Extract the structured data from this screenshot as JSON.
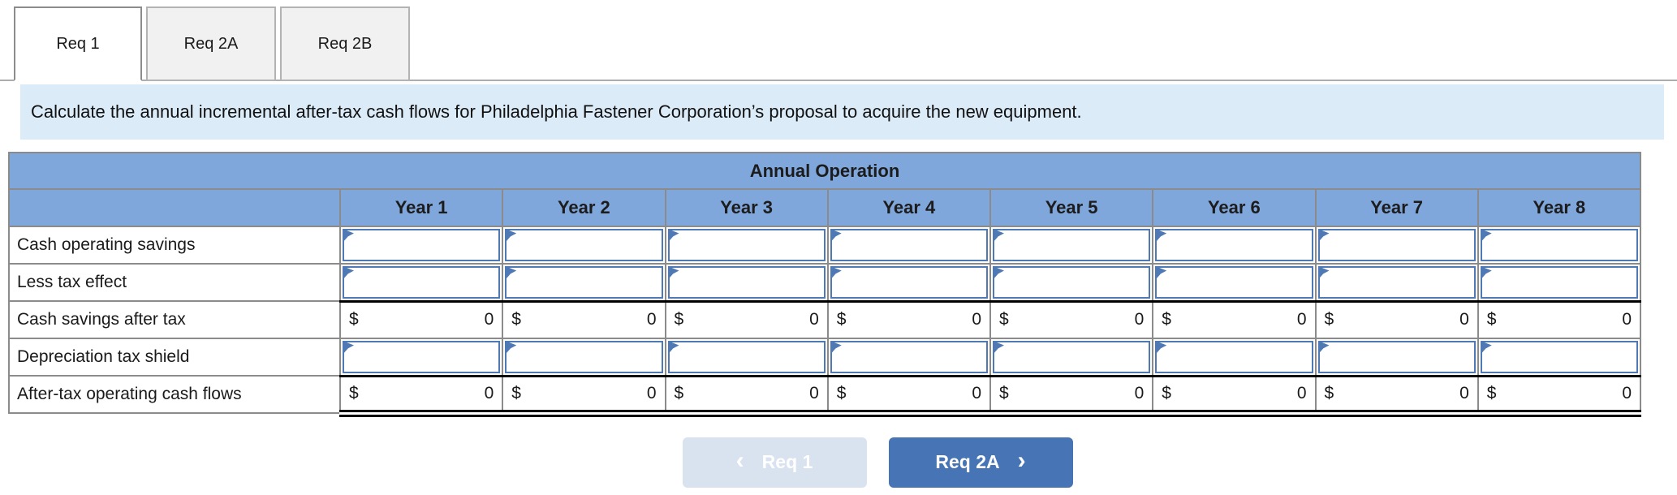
{
  "tabs": [
    {
      "label": "Req 1",
      "active": true
    },
    {
      "label": "Req 2A",
      "active": false
    },
    {
      "label": "Req 2B",
      "active": false
    }
  ],
  "instruction": "Calculate the annual incremental after-tax cash flows for Philadelphia Fastener Corporation’s proposal to acquire the new equipment.",
  "table": {
    "title": "Annual Operation",
    "columns": [
      "Year 1",
      "Year 2",
      "Year 3",
      "Year 4",
      "Year 5",
      "Year 6",
      "Year 7",
      "Year 8"
    ],
    "rows": [
      {
        "label": "Cash operating savings",
        "type": "input"
      },
      {
        "label": "Less tax effect",
        "type": "input"
      },
      {
        "label": "Cash savings after tax",
        "type": "total",
        "currency": "$",
        "value": "0"
      },
      {
        "label": "Depreciation tax shield",
        "type": "input"
      },
      {
        "label": "After-tax operating cash flows",
        "type": "total-final",
        "currency": "$",
        "value": "0"
      }
    ]
  },
  "nav": {
    "prev": {
      "label": "Req 1",
      "chevron": "‹",
      "enabled": false
    },
    "next": {
      "label": "Req 2A",
      "chevron": "›",
      "enabled": true
    }
  },
  "colors": {
    "header_blue": "#80a7dc",
    "banner_blue": "#dcebf8",
    "input_border_blue": "#4e79b5",
    "grid_gray": "#8b8b8b",
    "next_button_blue": "#4674b4",
    "prev_button_disabled": "#d9e2ef"
  }
}
